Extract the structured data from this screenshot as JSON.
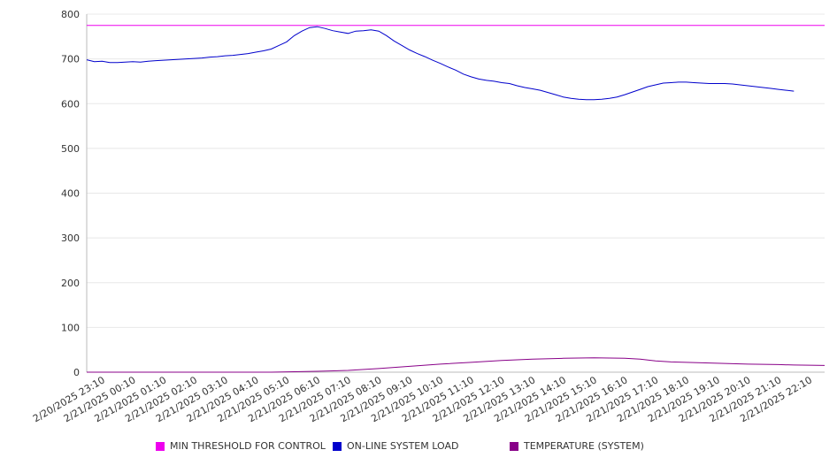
{
  "chart_data": {
    "type": "line",
    "ylim": [
      0,
      800
    ],
    "y_ticks": [
      0,
      100,
      200,
      300,
      400,
      500,
      600,
      700,
      800
    ],
    "x_tick_labels": [
      "2/20/2025 23:10",
      "2/21/2025 00:10",
      "2/21/2025 01:10",
      "2/21/2025 02:10",
      "2/21/2025 03:10",
      "2/21/2025 04:10",
      "2/21/2025 05:10",
      "2/21/2025 06:10",
      "2/21/2025 07:10",
      "2/21/2025 08:10",
      "2/21/2025 09:10",
      "2/21/2025 10:10",
      "2/21/2025 11:10",
      "2/21/2025 12:10",
      "2/21/2025 13:10",
      "2/21/2025 14:10",
      "2/21/2025 15:10",
      "2/21/2025 16:10",
      "2/21/2025 17:10",
      "2/21/2025 18:10",
      "2/21/2025 19:10",
      "2/21/2025 20:10",
      "2/21/2025 21:10",
      "2/21/2025 22:10"
    ],
    "x_range_hours": [
      0,
      24
    ],
    "grid": true,
    "legend_position": "bottom",
    "series": [
      {
        "name": "MIN THRESHOLD FOR CONTROL",
        "color": "#ee00ee",
        "points": [
          [
            0,
            775
          ],
          [
            24,
            775
          ]
        ]
      },
      {
        "name": "ON-LINE SYSTEM LOAD",
        "color": "#0000cc",
        "points": [
          [
            0,
            698
          ],
          [
            0.25,
            694
          ],
          [
            0.5,
            695
          ],
          [
            0.75,
            692
          ],
          [
            1,
            692
          ],
          [
            1.25,
            693
          ],
          [
            1.5,
            694
          ],
          [
            1.75,
            693
          ],
          [
            2,
            695
          ],
          [
            2.25,
            696
          ],
          [
            2.5,
            697
          ],
          [
            2.75,
            698
          ],
          [
            3,
            699
          ],
          [
            3.25,
            700
          ],
          [
            3.5,
            701
          ],
          [
            3.75,
            702
          ],
          [
            4,
            704
          ],
          [
            4.25,
            705
          ],
          [
            4.5,
            707
          ],
          [
            4.75,
            708
          ],
          [
            5,
            710
          ],
          [
            5.25,
            712
          ],
          [
            5.5,
            715
          ],
          [
            5.75,
            718
          ],
          [
            6,
            722
          ],
          [
            6.25,
            730
          ],
          [
            6.5,
            738
          ],
          [
            6.75,
            752
          ],
          [
            7,
            762
          ],
          [
            7.25,
            770
          ],
          [
            7.5,
            772
          ],
          [
            7.75,
            768
          ],
          [
            8,
            763
          ],
          [
            8.25,
            760
          ],
          [
            8.5,
            757
          ],
          [
            8.75,
            762
          ],
          [
            9,
            763
          ],
          [
            9.25,
            765
          ],
          [
            9.5,
            762
          ],
          [
            9.75,
            752
          ],
          [
            10,
            740
          ],
          [
            10.25,
            730
          ],
          [
            10.5,
            720
          ],
          [
            10.75,
            712
          ],
          [
            11,
            705
          ],
          [
            11.25,
            697
          ],
          [
            11.5,
            690
          ],
          [
            11.75,
            682
          ],
          [
            12,
            675
          ],
          [
            12.25,
            666
          ],
          [
            12.5,
            660
          ],
          [
            12.75,
            655
          ],
          [
            13,
            652
          ],
          [
            13.25,
            650
          ],
          [
            13.5,
            647
          ],
          [
            13.75,
            645
          ],
          [
            14,
            640
          ],
          [
            14.25,
            636
          ],
          [
            14.5,
            633
          ],
          [
            14.75,
            630
          ],
          [
            15,
            625
          ],
          [
            15.25,
            620
          ],
          [
            15.5,
            615
          ],
          [
            15.75,
            612
          ],
          [
            16,
            610
          ],
          [
            16.25,
            609
          ],
          [
            16.5,
            609
          ],
          [
            16.75,
            610
          ],
          [
            17,
            612
          ],
          [
            17.25,
            615
          ],
          [
            17.5,
            620
          ],
          [
            17.75,
            626
          ],
          [
            18,
            632
          ],
          [
            18.25,
            638
          ],
          [
            18.5,
            642
          ],
          [
            18.75,
            646
          ],
          [
            19,
            647
          ],
          [
            19.25,
            648
          ],
          [
            19.5,
            648
          ],
          [
            19.75,
            647
          ],
          [
            20,
            646
          ],
          [
            20.25,
            645
          ],
          [
            20.5,
            645
          ],
          [
            20.75,
            645
          ],
          [
            21,
            644
          ],
          [
            21.25,
            642
          ],
          [
            21.5,
            640
          ],
          [
            21.75,
            638
          ],
          [
            22,
            636
          ],
          [
            22.25,
            634
          ],
          [
            22.5,
            632
          ],
          [
            22.75,
            630
          ],
          [
            23,
            628
          ]
        ]
      },
      {
        "name": "TEMPERATURE (SYSTEM)",
        "color": "#880088",
        "points": [
          [
            0,
            0
          ],
          [
            6,
            0
          ],
          [
            6.75,
            1
          ],
          [
            7.5,
            2
          ],
          [
            8.5,
            4
          ],
          [
            9.5,
            8
          ],
          [
            10.5,
            13
          ],
          [
            11.5,
            18
          ],
          [
            12.5,
            22
          ],
          [
            13.5,
            26
          ],
          [
            14.5,
            29
          ],
          [
            15.5,
            31
          ],
          [
            16.5,
            32
          ],
          [
            17.5,
            31
          ],
          [
            18,
            29
          ],
          [
            18.5,
            25
          ],
          [
            19,
            23
          ],
          [
            19.5,
            22
          ],
          [
            20.5,
            20
          ],
          [
            21.5,
            18
          ],
          [
            22.5,
            17
          ],
          [
            23,
            16
          ],
          [
            24,
            15
          ]
        ]
      }
    ]
  }
}
